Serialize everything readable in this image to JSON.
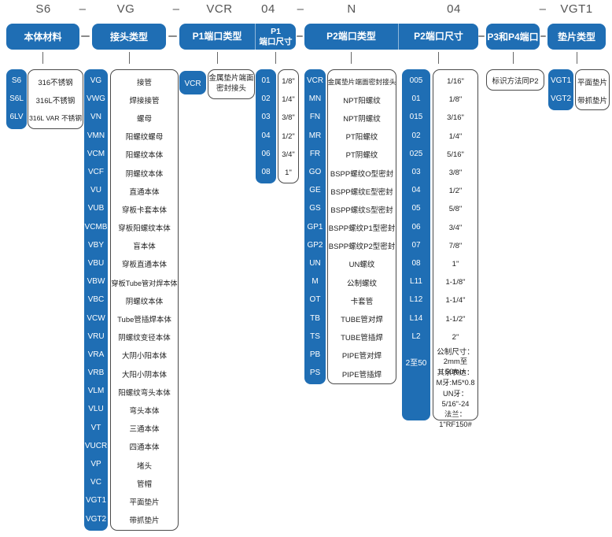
{
  "colors": {
    "accent_blue": "#1f6eb4",
    "box_border": "#4a4a4a",
    "text_dark": "#222222",
    "part_number_gray": "#555555"
  },
  "part_number": {
    "segments": [
      "S6",
      "–",
      "VG",
      "–",
      "VCR",
      "04",
      "–",
      "N",
      "04",
      "–",
      "VGT1"
    ]
  },
  "columns": [
    {
      "id": "body-material",
      "header": "本体材料",
      "items": [
        {
          "code": "S6",
          "desc": "316不锈钢"
        },
        {
          "code": "S6L",
          "desc": "316L不锈钢"
        },
        {
          "code": "6LV",
          "desc": "316L VAR 不锈钢"
        }
      ]
    },
    {
      "id": "connector-type",
      "header": "接头类型",
      "items": [
        {
          "code": "VG",
          "desc": "接管"
        },
        {
          "code": "VWG",
          "desc": "焊接接管"
        },
        {
          "code": "VN",
          "desc": "螺母"
        },
        {
          "code": "VMN",
          "desc": "阳螺纹螺母"
        },
        {
          "code": "VCM",
          "desc": "阳螺纹本体"
        },
        {
          "code": "VCF",
          "desc": "阴螺纹本体"
        },
        {
          "code": "VU",
          "desc": "直通本体"
        },
        {
          "code": "VUB",
          "desc": "穿板卡套本体"
        },
        {
          "code": "VCMB",
          "desc": "穿板阳螺纹本体"
        },
        {
          "code": "VBY",
          "desc": "盲本体"
        },
        {
          "code": "VBU",
          "desc": "穿板直通本体"
        },
        {
          "code": "VBW",
          "desc": "穿板Tube管对焊本体"
        },
        {
          "code": "VBC",
          "desc": "阴螺纹本体"
        },
        {
          "code": "VCW",
          "desc": "Tube管插焊本体"
        },
        {
          "code": "VRU",
          "desc": "阴螺纹变径本体"
        },
        {
          "code": "VRA",
          "desc": "大阴小阳本体"
        },
        {
          "code": "VRB",
          "desc": "大阳小阴本体"
        },
        {
          "code": "VLM",
          "desc": "阳螺纹弯头本体"
        },
        {
          "code": "VLU",
          "desc": "弯头本体"
        },
        {
          "code": "VT",
          "desc": "三通本体"
        },
        {
          "code": "VUCR",
          "desc": "四通本体"
        },
        {
          "code": "VP",
          "desc": "堵头"
        },
        {
          "code": "VC",
          "desc": "管帽"
        },
        {
          "code": "VGT1",
          "desc": "平面垫片"
        },
        {
          "code": "VGT2",
          "desc": "带抓垫片"
        }
      ]
    },
    {
      "id": "p1-port-type",
      "header": "P1端口类型",
      "items": [
        {
          "code": "VCR",
          "desc": "金属垫片端面\n密封接头"
        }
      ]
    },
    {
      "id": "p1-port-size",
      "header": "P1\n端口尺寸",
      "items": [
        {
          "code": "01",
          "desc": "1/8\""
        },
        {
          "code": "02",
          "desc": "1/4\""
        },
        {
          "code": "03",
          "desc": "3/8\""
        },
        {
          "code": "04",
          "desc": "1/2\""
        },
        {
          "code": "06",
          "desc": "3/4\""
        },
        {
          "code": "08",
          "desc": "1\""
        }
      ]
    },
    {
      "id": "p2-port-type",
      "header": "P2端口类型",
      "items": [
        {
          "code": "VCR",
          "desc": "金属垫片端面密封接头"
        },
        {
          "code": "MN",
          "desc": "NPT阳螺纹"
        },
        {
          "code": "FN",
          "desc": "NPT阴螺纹"
        },
        {
          "code": "MR",
          "desc": "PT阳螺纹"
        },
        {
          "code": "FR",
          "desc": "PT阴螺纹"
        },
        {
          "code": "GO",
          "desc": "BSPP螺纹O型密封"
        },
        {
          "code": "GE",
          "desc": "BSPP螺纹E型密封"
        },
        {
          "code": "GS",
          "desc": "BSPP螺纹S型密封"
        },
        {
          "code": "GP1",
          "desc": "BSPP螺纹P1型密封"
        },
        {
          "code": "GP2",
          "desc": "BSPP螺纹P2型密封"
        },
        {
          "code": "UN",
          "desc": "UN螺纹"
        },
        {
          "code": "M",
          "desc": "公制螺纹"
        },
        {
          "code": "OT",
          "desc": "卡套管"
        },
        {
          "code": "TB",
          "desc": "TUBE管对焊"
        },
        {
          "code": "TS",
          "desc": "TUBE管插焊"
        },
        {
          "code": "PB",
          "desc": "PIPE管对焊"
        },
        {
          "code": "PS",
          "desc": "PIPE管插焊"
        }
      ]
    },
    {
      "id": "p2-port-size",
      "header": "P2端口尺寸",
      "items": [
        {
          "code": "005",
          "desc": "1/16\""
        },
        {
          "code": "01",
          "desc": "1/8\""
        },
        {
          "code": "015",
          "desc": "3/16\""
        },
        {
          "code": "02",
          "desc": "1/4\""
        },
        {
          "code": "025",
          "desc": "5/16\""
        },
        {
          "code": "03",
          "desc": "3/8\""
        },
        {
          "code": "04",
          "desc": "1/2\""
        },
        {
          "code": "05",
          "desc": "5/8\""
        },
        {
          "code": "06",
          "desc": "3/4\""
        },
        {
          "code": "07",
          "desc": "7/8\""
        },
        {
          "code": "08",
          "desc": "1\""
        },
        {
          "code": "L11",
          "desc": "1-1/8\""
        },
        {
          "code": "L12",
          "desc": "1-1/4\""
        },
        {
          "code": "L14",
          "desc": "1-1/2\""
        },
        {
          "code": "L2",
          "desc": "2\""
        },
        {
          "code": "2至50",
          "desc": "公制尺寸：\n2mm至50mm"
        }
      ],
      "note": "其余表达：\nM牙:M5*0.8\nUN牙：5/16\"-24\n法兰：1\"RF150#"
    },
    {
      "id": "p3-p4-port",
      "header": "P3和P4端口",
      "items": [
        {
          "code": "",
          "desc": "标识方法同P2"
        }
      ]
    },
    {
      "id": "gasket-type",
      "header": "垫片类型",
      "items": [
        {
          "code": "VGT1",
          "desc": "平面垫片"
        },
        {
          "code": "VGT2",
          "desc": "带抓垫片"
        }
      ]
    }
  ]
}
